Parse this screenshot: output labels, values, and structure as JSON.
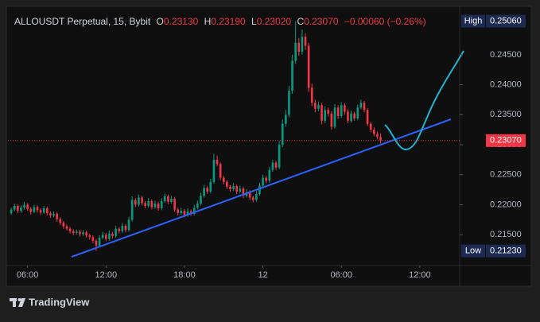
{
  "header": {
    "symbol": "ALLOUSDT Perpetual, 15, Bybit",
    "fields": [
      {
        "label": "O",
        "value": "0.23130"
      },
      {
        "label": "H",
        "value": "0.23190"
      },
      {
        "label": "L",
        "value": "0.23020"
      },
      {
        "label": "C",
        "value": "0.23070"
      }
    ],
    "change": "−0.00060 (−0.26%)"
  },
  "chart_data": {
    "type": "candlestick",
    "ohlc": [
      [
        0.2186,
        0.2195,
        0.2183,
        0.2192
      ],
      [
        0.2192,
        0.2202,
        0.2189,
        0.2198
      ],
      [
        0.2198,
        0.2201,
        0.2186,
        0.219
      ],
      [
        0.219,
        0.2199,
        0.2187,
        0.2195
      ],
      [
        0.2195,
        0.2205,
        0.2192,
        0.22
      ],
      [
        0.22,
        0.2203,
        0.219,
        0.2193
      ],
      [
        0.2193,
        0.2196,
        0.2184,
        0.2188
      ],
      [
        0.2188,
        0.22,
        0.2186,
        0.2196
      ],
      [
        0.2196,
        0.2199,
        0.2187,
        0.2191
      ],
      [
        0.2191,
        0.2194,
        0.2183,
        0.2187
      ],
      [
        0.2187,
        0.2198,
        0.2185,
        0.2194
      ],
      [
        0.2194,
        0.2197,
        0.2182,
        0.2186
      ],
      [
        0.2186,
        0.2189,
        0.2178,
        0.2182
      ],
      [
        0.2182,
        0.2189,
        0.2179,
        0.2185
      ],
      [
        0.2185,
        0.2188,
        0.2172,
        0.2176
      ],
      [
        0.2176,
        0.2179,
        0.2166,
        0.217
      ],
      [
        0.217,
        0.2173,
        0.216,
        0.2164
      ],
      [
        0.2164,
        0.2167,
        0.2157,
        0.216
      ],
      [
        0.216,
        0.2163,
        0.2152,
        0.2156
      ],
      [
        0.2156,
        0.2159,
        0.2149,
        0.2153
      ],
      [
        0.2153,
        0.2159,
        0.215,
        0.2155
      ],
      [
        0.2155,
        0.2158,
        0.2147,
        0.2151
      ],
      [
        0.2151,
        0.2158,
        0.2148,
        0.2154
      ],
      [
        0.2154,
        0.2157,
        0.2145,
        0.2149
      ],
      [
        0.2149,
        0.2152,
        0.2142,
        0.2146
      ],
      [
        0.2146,
        0.2149,
        0.2136,
        0.214
      ],
      [
        0.214,
        0.2143,
        0.2123,
        0.2132
      ],
      [
        0.2132,
        0.2149,
        0.2129,
        0.2145
      ],
      [
        0.2145,
        0.2155,
        0.2142,
        0.215
      ],
      [
        0.215,
        0.2153,
        0.2139,
        0.2143
      ],
      [
        0.2143,
        0.2157,
        0.214,
        0.2152
      ],
      [
        0.2152,
        0.2155,
        0.2144,
        0.2148
      ],
      [
        0.2148,
        0.2165,
        0.2145,
        0.216
      ],
      [
        0.216,
        0.2163,
        0.2152,
        0.2156
      ],
      [
        0.2156,
        0.217,
        0.2153,
        0.2165
      ],
      [
        0.2165,
        0.2168,
        0.2154,
        0.2158
      ],
      [
        0.2158,
        0.218,
        0.2155,
        0.2175
      ],
      [
        0.2175,
        0.2214,
        0.2172,
        0.2208
      ],
      [
        0.2208,
        0.2211,
        0.2196,
        0.22
      ],
      [
        0.22,
        0.2217,
        0.2197,
        0.2212
      ],
      [
        0.2212,
        0.2215,
        0.2199,
        0.2203
      ],
      [
        0.2203,
        0.2206,
        0.2194,
        0.2198
      ],
      [
        0.2198,
        0.2211,
        0.2195,
        0.2206
      ],
      [
        0.2206,
        0.2209,
        0.2192,
        0.2196
      ],
      [
        0.2196,
        0.2207,
        0.2193,
        0.2202
      ],
      [
        0.2202,
        0.2205,
        0.219,
        0.2194
      ],
      [
        0.2194,
        0.2211,
        0.2191,
        0.2206
      ],
      [
        0.2206,
        0.2219,
        0.2203,
        0.2214
      ],
      [
        0.2214,
        0.2217,
        0.2201,
        0.2205
      ],
      [
        0.2205,
        0.2215,
        0.2202,
        0.221
      ],
      [
        0.221,
        0.2213,
        0.2188,
        0.2192
      ],
      [
        0.2192,
        0.2195,
        0.2182,
        0.2186
      ],
      [
        0.2186,
        0.2195,
        0.2183,
        0.219
      ],
      [
        0.219,
        0.2193,
        0.2179,
        0.2183
      ],
      [
        0.2183,
        0.2194,
        0.218,
        0.2189
      ],
      [
        0.2189,
        0.2192,
        0.2181,
        0.2185
      ],
      [
        0.2185,
        0.22,
        0.2182,
        0.2195
      ],
      [
        0.2195,
        0.2207,
        0.2192,
        0.2202
      ],
      [
        0.2202,
        0.222,
        0.2199,
        0.2215
      ],
      [
        0.2215,
        0.2233,
        0.2212,
        0.2228
      ],
      [
        0.2228,
        0.2231,
        0.2218,
        0.2222
      ],
      [
        0.2222,
        0.2243,
        0.2219,
        0.2238
      ],
      [
        0.2238,
        0.2285,
        0.2235,
        0.2275
      ],
      [
        0.2275,
        0.2282,
        0.2264,
        0.2268
      ],
      [
        0.2268,
        0.2271,
        0.2241,
        0.2245
      ],
      [
        0.2245,
        0.2248,
        0.2234,
        0.2238
      ],
      [
        0.2238,
        0.2241,
        0.2226,
        0.223
      ],
      [
        0.223,
        0.2233,
        0.2222,
        0.2226
      ],
      [
        0.2226,
        0.2236,
        0.2223,
        0.2231
      ],
      [
        0.2231,
        0.2234,
        0.2218,
        0.2222
      ],
      [
        0.2222,
        0.2232,
        0.2219,
        0.2227
      ],
      [
        0.2227,
        0.223,
        0.2211,
        0.2215
      ],
      [
        0.2215,
        0.2226,
        0.2212,
        0.2221
      ],
      [
        0.2221,
        0.2224,
        0.2208,
        0.2212
      ],
      [
        0.2212,
        0.2215,
        0.2204,
        0.2208
      ],
      [
        0.2208,
        0.2223,
        0.2205,
        0.2218
      ],
      [
        0.2218,
        0.2237,
        0.2215,
        0.2232
      ],
      [
        0.2232,
        0.225,
        0.2229,
        0.2245
      ],
      [
        0.2245,
        0.2248,
        0.2236,
        0.224
      ],
      [
        0.224,
        0.2263,
        0.2237,
        0.2258
      ],
      [
        0.2258,
        0.2275,
        0.2255,
        0.227
      ],
      [
        0.227,
        0.2273,
        0.2258,
        0.2262
      ],
      [
        0.2262,
        0.2306,
        0.2259,
        0.23
      ],
      [
        0.23,
        0.2342,
        0.2296,
        0.2335
      ],
      [
        0.2335,
        0.2358,
        0.233,
        0.235
      ],
      [
        0.235,
        0.2398,
        0.2346,
        0.239
      ],
      [
        0.239,
        0.245,
        0.2385,
        0.244
      ],
      [
        0.244,
        0.2506,
        0.2435,
        0.247
      ],
      [
        0.247,
        0.2478,
        0.2448,
        0.2455
      ],
      [
        0.2455,
        0.2492,
        0.245,
        0.248
      ],
      [
        0.248,
        0.2486,
        0.2458,
        0.2465
      ],
      [
        0.2465,
        0.247,
        0.2388,
        0.2395
      ],
      [
        0.2395,
        0.2402,
        0.2364,
        0.237
      ],
      [
        0.237,
        0.2375,
        0.2354,
        0.236
      ],
      [
        0.236,
        0.2372,
        0.2356,
        0.2366
      ],
      [
        0.2366,
        0.237,
        0.2334,
        0.234
      ],
      [
        0.234,
        0.2364,
        0.2336,
        0.2358
      ],
      [
        0.2358,
        0.2362,
        0.2347,
        0.2352
      ],
      [
        0.2352,
        0.2356,
        0.2325,
        0.233
      ],
      [
        0.233,
        0.2368,
        0.2327,
        0.2362
      ],
      [
        0.2362,
        0.2366,
        0.2343,
        0.2348
      ],
      [
        0.2348,
        0.2371,
        0.2345,
        0.2366
      ],
      [
        0.2366,
        0.2369,
        0.235,
        0.2355
      ],
      [
        0.2355,
        0.2359,
        0.2336,
        0.234
      ],
      [
        0.234,
        0.2357,
        0.2337,
        0.2352
      ],
      [
        0.2352,
        0.2355,
        0.234,
        0.2344
      ],
      [
        0.2344,
        0.2367,
        0.2341,
        0.2362
      ],
      [
        0.2362,
        0.2375,
        0.2359,
        0.237
      ],
      [
        0.237,
        0.2373,
        0.2354,
        0.2358
      ],
      [
        0.2358,
        0.2361,
        0.2331,
        0.2335
      ],
      [
        0.2335,
        0.2338,
        0.2321,
        0.2325
      ],
      [
        0.2325,
        0.2329,
        0.2314,
        0.2318
      ],
      [
        0.2318,
        0.2322,
        0.2309,
        0.2313
      ],
      [
        0.2313,
        0.2319,
        0.2302,
        0.2307
      ]
    ],
    "xlim": [
      -1,
      137.2
    ],
    "xticks": [
      {
        "value": 5,
        "label": "06:00"
      },
      {
        "value": 29,
        "label": "12:00"
      },
      {
        "value": 53,
        "label": "18:00"
      },
      {
        "value": 77,
        "label": "12"
      },
      {
        "value": 101,
        "label": "06:00"
      },
      {
        "value": 125,
        "label": "12:00"
      }
    ],
    "ylim": [
      0.21,
      0.2528
    ],
    "yticks": [
      {
        "value": 0.215,
        "label": "0.21500"
      },
      {
        "value": 0.22,
        "label": "0.22000"
      },
      {
        "value": 0.225,
        "label": "0.22500"
      },
      {
        "value": 0.23,
        "label": "0.23000"
      },
      {
        "value": 0.235,
        "label": "0.23500"
      },
      {
        "value": 0.24,
        "label": "0.24000"
      },
      {
        "value": 0.245,
        "label": "0.24500"
      }
    ],
    "grid": false,
    "up_color": "#089981",
    "down_color": "#f23645",
    "last_price": {
      "value": 0.2307,
      "label": "0.23070"
    },
    "high": {
      "name": "High",
      "price": {
        "value": 0.2506,
        "label": "0.25060"
      }
    },
    "low": {
      "name": "Low",
      "price": {
        "value": 0.2123,
        "label": "0.21230"
      }
    }
  },
  "footer": {
    "brand": "TradingView"
  }
}
